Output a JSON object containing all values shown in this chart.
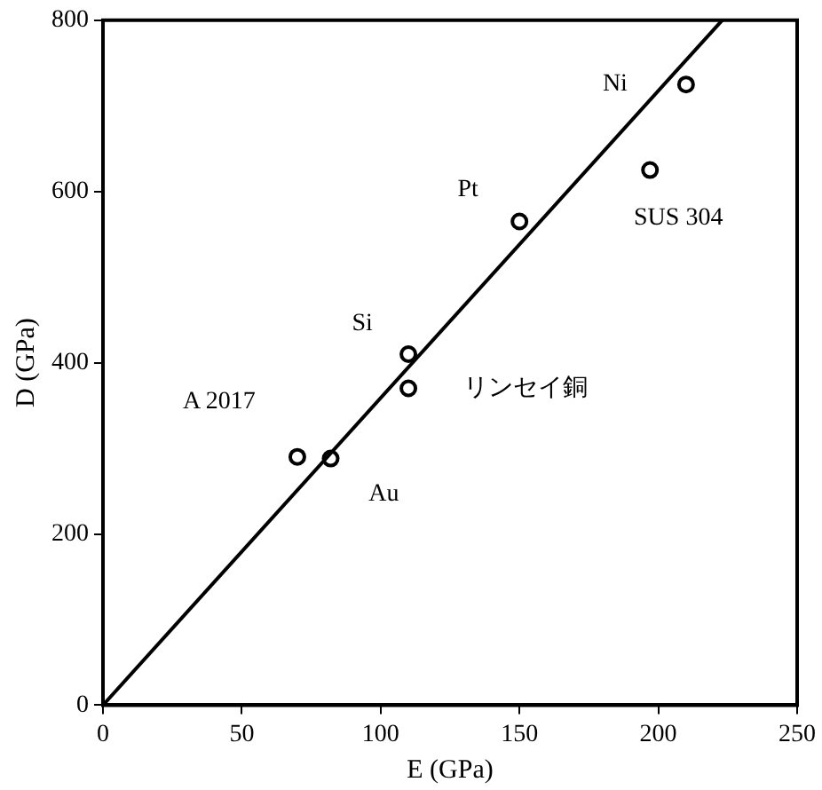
{
  "chart_data": {
    "type": "scatter",
    "xlabel": "E (GPa)",
    "ylabel": "D (GPa)",
    "xlim": [
      0,
      250
    ],
    "xticks": [
      0,
      50,
      100,
      150,
      200,
      250
    ],
    "ylim": [
      0,
      800
    ],
    "yticks": [
      0,
      200,
      400,
      600,
      800
    ],
    "grid": false,
    "legend": false,
    "marker": "circle",
    "series": [
      {
        "color": "#000000",
        "x": [
          70,
          82,
          110,
          110,
          150,
          197,
          210
        ],
        "values": [
          290,
          288,
          410,
          370,
          565,
          625,
          725
        ]
      },
      {
        "type": "line",
        "color": "#000000",
        "marker": "none",
        "line_style": "solid",
        "x": [
          0,
          223
        ],
        "values": [
          0,
          800
        ]
      }
    ],
    "annotations": [
      {
        "text": "A 2017",
        "x": 70,
        "y": 290
      },
      {
        "text": "Au",
        "x": 82,
        "y": 288
      },
      {
        "text": "Si",
        "x": 110,
        "y": 410
      },
      {
        "text": "リンセイ銅",
        "x": 110,
        "y": 370
      },
      {
        "text": "Pt",
        "x": 150,
        "y": 565
      },
      {
        "text": "SUS 304",
        "x": 197,
        "y": 625
      },
      {
        "text": "Ni",
        "x": 210,
        "y": 725
      }
    ]
  }
}
